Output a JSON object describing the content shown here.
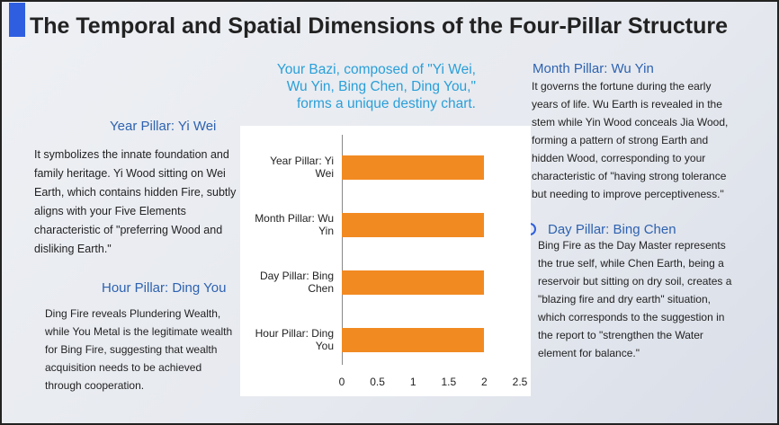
{
  "header": {
    "title": "The Temporal and Spatial Dimensions of the Four-Pillar Structure"
  },
  "center_note": "Your Bazi, composed of \"Yi Wei, Wu Yin, Bing Chen, Ding You,\" forms a unique destiny chart.",
  "pillars": [
    {
      "heading": "Year Pillar: Yi Wei",
      "text": "It symbolizes the innate foundation and family heritage. Yi Wood sitting on Wei Earth, which contains hidden Fire, subtly aligns with your Five Elements characteristic of \"preferring Wood and disliking Earth.\""
    },
    {
      "heading": "Hour Pillar: Ding You",
      "text": "Ding Fire reveals Plundering Wealth, while You Metal is the legitimate wealth for Bing Fire, suggesting that wealth acquisition needs to be achieved through cooperation."
    },
    {
      "heading": "Month Pillar: Wu Yin",
      "text": "It governs the fortune during the early years of life. Wu Earth is revealed in the stem while Yin Wood conceals Jia Wood, forming a pattern of strong Earth and hidden Wood, corresponding to your characteristic of \"having strong tolerance but needing to improve perceptiveness.\""
    },
    {
      "heading": "Day Pillar: Bing Chen",
      "text": "Bing Fire as the Day Master represents the true self, while Chen Earth, being a reservoir but sitting on dry soil, creates a \"blazing fire and dry earth\" situation, which corresponds to the suggestion in the report to \"strengthen the Water element for balance.\""
    }
  ],
  "chart_data": {
    "type": "bar",
    "orientation": "horizontal",
    "categories": [
      "Year Pillar: Yi Wei",
      "Month Pillar: Wu Yin",
      "Day Pillar: Bing Chen",
      "Hour Pillar: Ding You"
    ],
    "values": [
      2,
      2,
      2,
      2
    ],
    "color": "#f28a22",
    "xlim": [
      0,
      2.5
    ],
    "xticks": [
      0,
      0.5,
      1,
      1.5,
      2,
      2.5
    ]
  }
}
